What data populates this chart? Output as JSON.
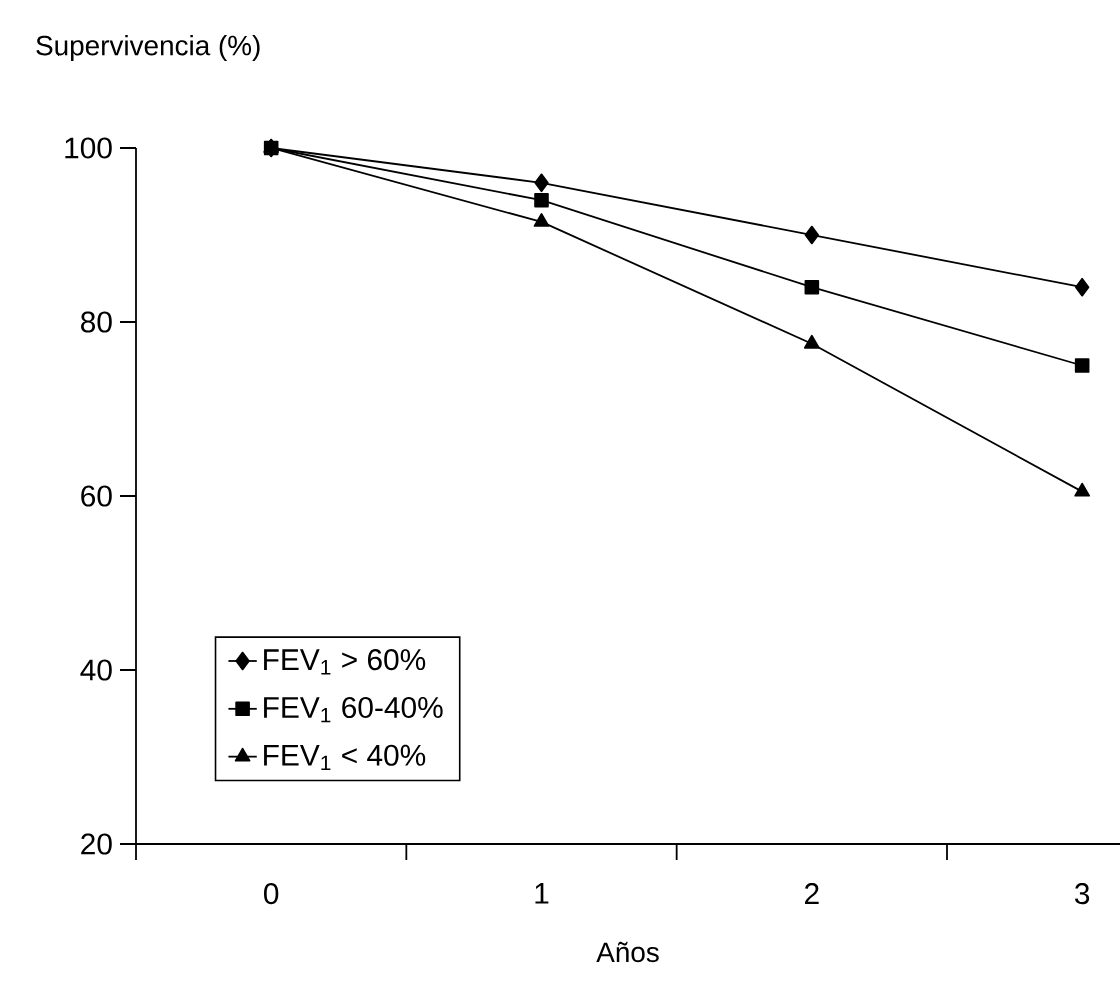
{
  "chart_data": {
    "type": "line",
    "ylabel": "Supervivencia (%)",
    "xlabel": "Años",
    "categories": [
      "0",
      "1",
      "2",
      "3"
    ],
    "ylim": [
      20,
      100
    ],
    "yticks": [
      20,
      40,
      60,
      80,
      100
    ],
    "legend": "bottom left",
    "line_style": "solid",
    "series": [
      {
        "name": "FEV$_{1}$ > 60%",
        "color": "#000000",
        "marker": "diamond",
        "values": [
          100,
          96,
          90,
          84
        ]
      },
      {
        "name": "FEV$_{1}$ 60-40%",
        "color": "#000000",
        "marker": "square",
        "values": [
          100,
          94,
          84,
          75
        ]
      },
      {
        "name": "FEV$_{1}$ < 40%",
        "color": "#000000",
        "marker": "triangle",
        "values": [
          100,
          91.5,
          77.5,
          60.5
        ]
      }
    ]
  }
}
